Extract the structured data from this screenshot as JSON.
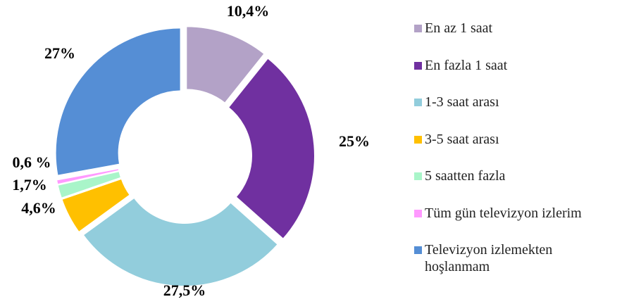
{
  "chart_data": {
    "type": "donut",
    "categories": [
      "En az 1 saat",
      "En fazla 1 saat",
      "1-3 saat arası",
      "3-5 saat arası",
      "5 saatten fazla",
      "Tüm gün televizyon izlerim",
      "Televizyon izlemekten hoşlanmam"
    ],
    "values": [
      10.4,
      25,
      27.5,
      4.6,
      1.7,
      0.6,
      27
    ],
    "value_labels": [
      "10,4%",
      "25%",
      "27,5%",
      "4,6%",
      "1,7%",
      "0,6 %",
      "27%"
    ],
    "colors": [
      "#b3a2c7",
      "#7030a0",
      "#92cddc",
      "#ffc000",
      "#a9f5c9",
      "#ff99ff",
      "#558ed5"
    ],
    "legend": "right"
  }
}
